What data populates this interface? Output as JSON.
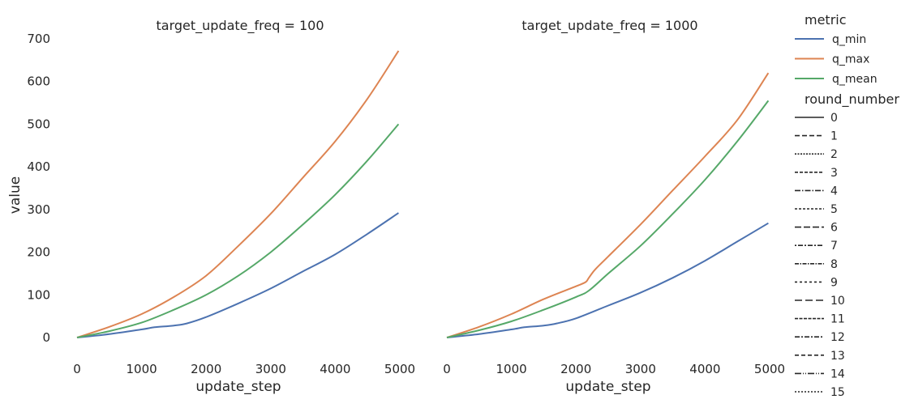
{
  "chart_data": {
    "type": "line",
    "facets": [
      {
        "title": "target_update_freq = 100",
        "xlabel": "update_step",
        "ylabel": "value",
        "xticks": [
          0,
          1000,
          2000,
          3000,
          4000,
          5000
        ],
        "yticks": [
          0,
          100,
          200,
          300,
          400,
          500,
          600,
          700
        ],
        "xlim": [
          -200,
          5250
        ],
        "ylim": [
          -50,
          715
        ],
        "series": [
          {
            "metric": "q_min",
            "x": [
              0,
              500,
              1000,
              1200,
              1500,
              1700,
              2000,
              2500,
              3000,
              3500,
              4000,
              4500,
              4980
            ],
            "values": [
              0,
              8,
              19,
              24,
              28,
              33,
              48,
              80,
              115,
              155,
              195,
              243,
              292
            ]
          },
          {
            "metric": "q_max",
            "x": [
              0,
              500,
              1000,
              1500,
              2000,
              2500,
              3000,
              3500,
              4000,
              4500,
              4980
            ],
            "values": [
              0,
              25,
              55,
              95,
              145,
              215,
              290,
              375,
              460,
              560,
              672
            ]
          },
          {
            "metric": "q_mean",
            "x": [
              0,
              500,
              1000,
              1500,
              2000,
              2500,
              3000,
              3500,
              4000,
              4500,
              4980
            ],
            "values": [
              0,
              15,
              35,
              65,
              100,
              145,
              200,
              265,
              335,
              415,
              500
            ]
          }
        ]
      },
      {
        "title": "target_update_freq = 1000",
        "xlabel": "update_step",
        "ylabel": "",
        "xticks": [
          0,
          1000,
          2000,
          3000,
          4000,
          5000
        ],
        "yticks": [
          0,
          100,
          200,
          300,
          400,
          500,
          600,
          700
        ],
        "xlim": [
          -200,
          5250
        ],
        "ylim": [
          -50,
          715
        ],
        "series": [
          {
            "metric": "q_min",
            "x": [
              0,
              500,
              1000,
              1200,
              1500,
              1700,
              2000,
              2500,
              3000,
              3500,
              4000,
              4500,
              4980
            ],
            "values": [
              0,
              8,
              19,
              24,
              28,
              33,
              45,
              75,
              105,
              140,
              180,
              225,
              268
            ]
          },
          {
            "metric": "q_max",
            "x": [
              0,
              500,
              1000,
              1500,
              2000,
              2150,
              2200,
              2300,
              2500,
              3000,
              3500,
              4000,
              4500,
              4980
            ],
            "values": [
              0,
              25,
              55,
              90,
              120,
              130,
              140,
              160,
              190,
              265,
              345,
              425,
              510,
              620
            ]
          },
          {
            "metric": "q_mean",
            "x": [
              0,
              500,
              1000,
              1500,
              2000,
              2200,
              2500,
              3000,
              3500,
              4000,
              4500,
              4980
            ],
            "values": [
              0,
              17,
              38,
              65,
              95,
              110,
              150,
              215,
              290,
              370,
              460,
              555
            ]
          }
        ]
      }
    ],
    "legend": {
      "placement": "right",
      "metric_title": "metric",
      "metrics": [
        {
          "name": "q_min",
          "color": "#4c72b0"
        },
        {
          "name": "q_max",
          "color": "#dd8452"
        },
        {
          "name": "q_mean",
          "color": "#55a868"
        }
      ],
      "round_title": "round_number",
      "rounds": [
        "0",
        "1",
        "2",
        "3",
        "4",
        "5",
        "6",
        "7",
        "8",
        "9",
        "10",
        "11",
        "12",
        "13",
        "14",
        "15"
      ]
    },
    "grid": false
  }
}
